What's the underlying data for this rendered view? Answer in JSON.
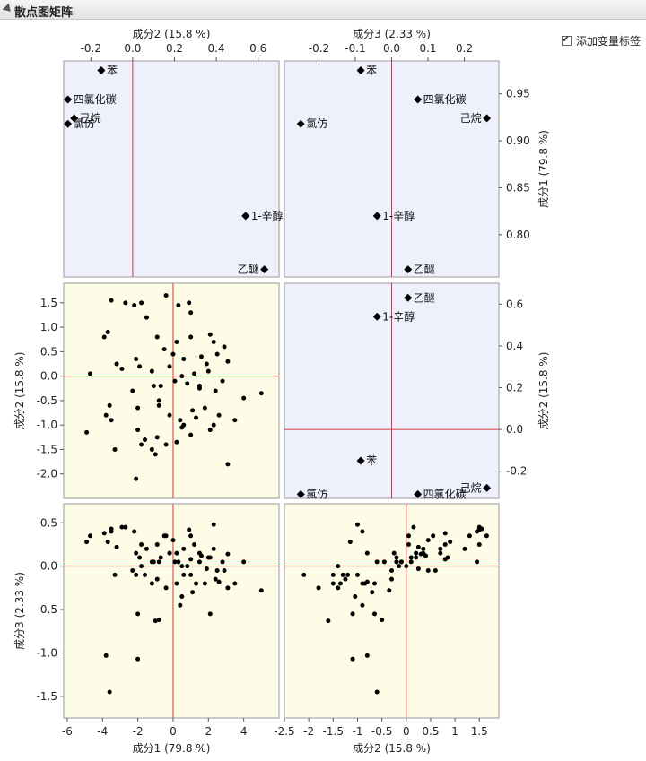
{
  "window": {
    "title": "散点图矩阵",
    "checkbox_label": "添加变量标签",
    "checkbox_checked": true
  },
  "colors": {
    "loading_bg": "#eef1fb",
    "score_bg": "#fdfce6",
    "ref_line": "#d23a3a",
    "marker": "#000000",
    "frame": "#9a9a9a"
  },
  "chart_data": {
    "type": "scatter",
    "title": "散点图矩阵",
    "variables": {
      "pc1": "成分1 (79.8 %)",
      "pc2": "成分2 (15.8 %)",
      "pc3": "成分3 (2.33 %)"
    },
    "scales": {
      "load_pc1": {
        "range": [
          0.755,
          0.985
        ],
        "ticks": [
          0.8,
          0.85,
          0.9,
          0.95
        ],
        "labels": [
          "0.80",
          "0.85",
          "0.90",
          "0.95"
        ]
      },
      "load_pc2": {
        "range": [
          -0.33,
          0.7
        ],
        "ticks": [
          -0.2,
          0.0,
          0.2,
          0.4,
          0.6
        ],
        "labels": [
          "-0.2",
          "0.0",
          "0.2",
          "0.4",
          "0.6"
        ]
      },
      "load_pc3": {
        "range": [
          -0.295,
          0.295
        ],
        "ticks": [
          -0.2,
          -0.1,
          0.0,
          0.1,
          0.2
        ],
        "labels": [
          "-0.2",
          "-0.1",
          "0.0",
          "0.1",
          "0.2"
        ]
      },
      "score_pc1": {
        "range": [
          -6.2,
          6.0
        ],
        "ticks": [
          -6,
          -4,
          -2,
          0,
          2,
          4
        ],
        "labels": [
          "-6",
          "-4",
          "-2",
          "0",
          "2",
          "4"
        ]
      },
      "score_pc2": {
        "range": [
          -2.5,
          1.9
        ],
        "ticks": [
          -2.5,
          -2,
          -1.5,
          -1,
          -0.5,
          0,
          0.5,
          1,
          1.5
        ],
        "labels": [
          "-2.5",
          "-2",
          "-1.5",
          "-1",
          "-0.5",
          "0",
          "0.5",
          "1",
          "1.5"
        ],
        "ticks_y": [
          -2.0,
          -1.5,
          -1.0,
          -0.5,
          0.0,
          0.5,
          1.0,
          1.5
        ],
        "labels_y": [
          "-2.0",
          "-1.5",
          "-1.0",
          "-0.5",
          "0.0",
          "0.5",
          "1.0",
          "1.5"
        ]
      },
      "score_pc3": {
        "range": [
          -1.75,
          0.72
        ],
        "ticks": [
          -1.5,
          -1.0,
          -0.5,
          0.0,
          0.5
        ],
        "labels": [
          "-1.5",
          "-1.0",
          "-0.5",
          "0.0",
          "0.5"
        ]
      }
    },
    "loadings": [
      {
        "name": "苯",
        "pc1": 0.975,
        "pc2": -0.15,
        "pc3": -0.085
      },
      {
        "name": "四氯化碳",
        "pc1": 0.944,
        "pc2": -0.31,
        "pc3": 0.072
      },
      {
        "name": "己烷",
        "pc1": 0.924,
        "pc2": -0.28,
        "pc3": 0.262
      },
      {
        "name": "氯仿",
        "pc1": 0.918,
        "pc2": -0.31,
        "pc3": -0.25
      },
      {
        "name": "1-辛醇",
        "pc1": 0.82,
        "pc2": 0.54,
        "pc3": -0.04
      },
      {
        "name": "乙醚",
        "pc1": 0.763,
        "pc2": 0.63,
        "pc3": 0.045
      }
    ],
    "scores": [
      [
        -3.5,
        1.55,
        0.43
      ],
      [
        -2.7,
        1.5,
        0.45
      ],
      [
        -2.2,
        1.45,
        0.4
      ],
      [
        -1.8,
        1.5,
        0.25
      ],
      [
        -0.4,
        1.65,
        0.35
      ],
      [
        0.3,
        1.45,
        0.05
      ],
      [
        0.9,
        1.5,
        0.42
      ],
      [
        1.0,
        1.3,
        0.35
      ],
      [
        -3.7,
        0.9,
        0.28
      ],
      [
        -3.9,
        0.8,
        0.38
      ],
      [
        -1.5,
        1.2,
        0.2
      ],
      [
        -0.9,
        0.8,
        0.25
      ],
      [
        0.2,
        0.7,
        0.15
      ],
      [
        1.0,
        0.8,
        0.08
      ],
      [
        2.1,
        0.85,
        0.1
      ],
      [
        2.3,
        0.7,
        0.2
      ],
      [
        2.9,
        0.6,
        -0.05
      ],
      [
        -2.9,
        0.15,
        0.45
      ],
      [
        -2.1,
        0.35,
        0.15
      ],
      [
        -1.9,
        0.2,
        0.1
      ],
      [
        -0.5,
        0.55,
        0.35
      ],
      [
        0.0,
        0.45,
        0.3
      ],
      [
        0.6,
        0.35,
        0.2
      ],
      [
        1.6,
        0.4,
        0.12
      ],
      [
        1.9,
        0.25,
        -0.03
      ],
      [
        2.5,
        0.45,
        -0.05
      ],
      [
        3.1,
        0.3,
        0.14
      ],
      [
        -4.7,
        0.05,
        0.35
      ],
      [
        -3.2,
        0.25,
        0.22
      ],
      [
        -1.2,
        0.1,
        0.05
      ],
      [
        -0.2,
        0.2,
        0.15
      ],
      [
        0.5,
        0.0,
        0.0
      ],
      [
        1.2,
        0.05,
        0.25
      ],
      [
        2.0,
        0.1,
        0.1
      ],
      [
        2.8,
        -0.1,
        0.05
      ],
      [
        -4.9,
        -1.15,
        0.28
      ],
      [
        -3.5,
        -0.9,
        0.4
      ],
      [
        -2.3,
        -0.3,
        -0.05
      ],
      [
        -1.1,
        -0.2,
        0.05
      ],
      [
        -0.7,
        -0.2,
        0.1
      ],
      [
        0.1,
        -0.1,
        0.05
      ],
      [
        0.8,
        -0.15,
        0.0
      ],
      [
        1.5,
        -0.25,
        0.15
      ],
      [
        2.4,
        -0.3,
        -0.15
      ],
      [
        4.0,
        -0.45,
        0.05
      ],
      [
        5.0,
        -0.35,
        -0.28
      ],
      [
        -3.3,
        -1.5,
        -0.1
      ],
      [
        -2.0,
        -0.65,
        -0.55
      ],
      [
        -1.6,
        -1.3,
        -0.1
      ],
      [
        -0.8,
        -0.6,
        0.05
      ],
      [
        -0.2,
        -0.8,
        0.15
      ],
      [
        0.4,
        -0.9,
        -0.45
      ],
      [
        1.1,
        -0.7,
        -0.3
      ],
      [
        1.8,
        -0.65,
        -0.2
      ],
      [
        2.6,
        -0.8,
        -0.18
      ],
      [
        -1.8,
        -1.4,
        0.0
      ],
      [
        -0.9,
        -1.25,
        -0.15
      ],
      [
        0.2,
        -1.35,
        -0.2
      ],
      [
        1.0,
        -1.2,
        -0.1
      ],
      [
        3.1,
        -1.8,
        -0.25
      ],
      [
        -2.1,
        -2.1,
        -0.1
      ],
      [
        -1.2,
        -1.5,
        -0.2
      ],
      [
        -0.4,
        -1.4,
        -0.25
      ],
      [
        0.5,
        -1.05,
        -0.35
      ],
      [
        1.3,
        -0.85,
        -0.2
      ],
      [
        -0.8,
        -0.5,
        -0.62
      ],
      [
        -1.0,
        -1.6,
        -0.63
      ],
      [
        2.1,
        -1.1,
        -0.55
      ],
      [
        3.5,
        -0.9,
        -0.2
      ],
      [
        -3.8,
        -0.8,
        -1.03
      ],
      [
        -2.0,
        -1.1,
        -1.07
      ],
      [
        -3.6,
        -0.6,
        -1.45
      ],
      [
        2.3,
        -1.0,
        0.48
      ],
      [
        0.6,
        -1.0,
        -0.1
      ],
      [
        1.5,
        -0.2,
        0.05
      ]
    ]
  }
}
